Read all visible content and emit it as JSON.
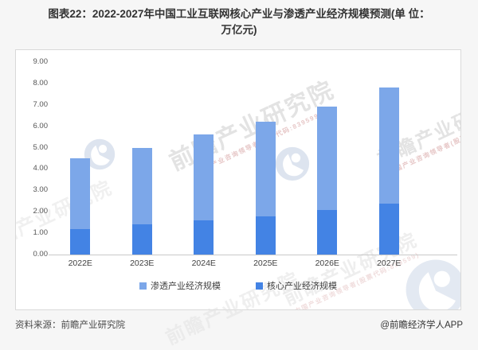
{
  "title": {
    "line1": "图表22：2022-2027年中国工业互联网核心产业与渗透产业经济规模预测(单 位：",
    "line2": "万亿元)"
  },
  "watermark": {
    "text": "前瞻产业研究院",
    "subtext": "中国产业咨询领导者(股票代码:839599)"
  },
  "footer": {
    "source": "资料来源：前瞻产业研究院",
    "credit": "@前瞻经济学人APP"
  },
  "chart_data": {
    "type": "bar",
    "stacked": true,
    "title": "2022-2027年中国工业互联网核心产业与渗透产业经济规模预测",
    "unit": "万亿元",
    "categories": [
      "2022E",
      "2023E",
      "2024E",
      "2025E",
      "2026E",
      "2027E"
    ],
    "series": [
      {
        "name": "核心产业经济规模",
        "color": "#4383E4",
        "values": [
          1.2,
          1.4,
          1.6,
          1.8,
          2.1,
          2.4
        ]
      },
      {
        "name": "渗透产业经济规模",
        "color": "#7CA7E9",
        "values": [
          3.3,
          3.6,
          4.0,
          4.4,
          4.8,
          5.4
        ]
      }
    ],
    "totals": [
      4.5,
      5.0,
      5.6,
      6.2,
      6.9,
      7.8
    ],
    "ylim": [
      0,
      9
    ],
    "yticks": [
      "0.00",
      "1.00",
      "2.00",
      "3.00",
      "4.00",
      "5.00",
      "6.00",
      "7.00",
      "8.00",
      "9.00"
    ],
    "grid": false,
    "legend_position": "bottom",
    "legend": [
      {
        "label": "渗透产业经济规模",
        "color": "#7CA7E9"
      },
      {
        "label": "核心产业经济规模",
        "color": "#4383E4"
      }
    ]
  }
}
